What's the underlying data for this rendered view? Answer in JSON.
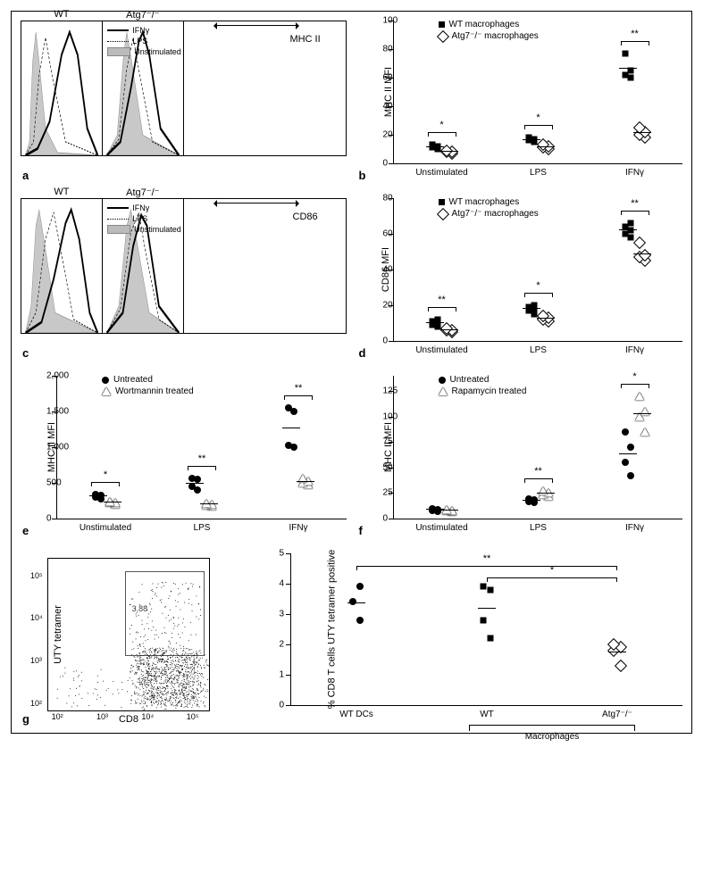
{
  "panel_a": {
    "left_title": "WT",
    "right_title": "Atg7⁻/⁻",
    "xaxis": "MHC II",
    "legend": [
      "IFNγ",
      "LPS",
      "Unstimulated"
    ],
    "curves": {
      "left": {
        "unstim": {
          "peak_x": 18,
          "fill": "#c8c8c8"
        },
        "lps": {
          "peak_x": 30,
          "dash": true
        },
        "ifn": {
          "peak_x": 60
        }
      },
      "right": {
        "unstim": {
          "peak_x": 30,
          "fill": "#c8c8c8"
        },
        "lps": {
          "peak_x": 38,
          "dash": true
        },
        "ifn": {
          "peak_x": 50
        }
      }
    }
  },
  "panel_b": {
    "ylabel": "MHC II MFI",
    "ylim": [
      0,
      100
    ],
    "ytick_step": 20,
    "legend": [
      "WT macrophages",
      "Atg7⁻/⁻ macrophages"
    ],
    "groups": [
      "Unstimulated",
      "LPS",
      "IFNγ"
    ],
    "data": {
      "WT": {
        "Unstimulated": [
          10,
          11,
          12,
          13
        ],
        "LPS": [
          15,
          16,
          17,
          18
        ],
        "IFNγ": [
          60,
          62,
          65,
          77
        ]
      },
      "Atg7": {
        "Unstimulated": [
          7,
          8,
          8,
          9
        ],
        "LPS": [
          10,
          11,
          12,
          13
        ],
        "IFNγ": [
          18,
          20,
          22,
          25
        ]
      }
    },
    "sig": {
      "Unstimulated": "*",
      "LPS": "*",
      "IFNγ": "**"
    }
  },
  "panel_c": {
    "left_title": "WT",
    "right_title": "Atg7⁻/⁻",
    "xaxis": "CD86",
    "legend": [
      "IFNγ",
      "LPS",
      "Unstimulated"
    ],
    "curves": {
      "left": {
        "unstim": {
          "peak_x": 20,
          "fill": "#c8c8c8"
        },
        "lps": {
          "peak_x": 40,
          "dash": true
        },
        "ifn": {
          "peak_x": 62
        }
      },
      "right": {
        "unstim": {
          "peak_x": 35,
          "fill": "#c8c8c8"
        },
        "lps": {
          "peak_x": 45,
          "dash": true
        },
        "ifn": {
          "peak_x": 50
        }
      }
    }
  },
  "panel_d": {
    "ylabel": "CD86 MFI",
    "ylim": [
      0,
      80
    ],
    "ytick_step": 20,
    "legend": [
      "WT macrophages",
      "Atg7⁻/⁻ macrophages"
    ],
    "groups": [
      "Unstimulated",
      "LPS",
      "IFNγ"
    ],
    "data": {
      "WT": {
        "Unstimulated": [
          8,
          9,
          10,
          11,
          12
        ],
        "LPS": [
          15,
          17,
          18,
          19,
          20
        ],
        "IFNγ": [
          58,
          60,
          62,
          64,
          66
        ]
      },
      "Atg7": {
        "Unstimulated": [
          5,
          6,
          6,
          7
        ],
        "LPS": [
          11,
          12,
          13,
          14
        ],
        "IFNγ": [
          45,
          47,
          48,
          55
        ]
      }
    },
    "sig": {
      "Unstimulated": "**",
      "LPS": "*",
      "IFNγ": "**"
    }
  },
  "panel_e": {
    "ylabel": "MHC II MFI",
    "ylim": [
      0,
      2000
    ],
    "ytick_step": 500,
    "legend": [
      "Untreated",
      "Wortmannin treated"
    ],
    "groups": [
      "Unstimulated",
      "LPS",
      "IFNγ"
    ],
    "data": {
      "Untreated": {
        "Unstimulated": [
          280,
          300,
          320,
          340
        ],
        "LPS": [
          400,
          450,
          550,
          560
        ],
        "IFNγ": [
          1000,
          1020,
          1500,
          1550
        ]
      },
      "Wortmannin": {
        "Unstimulated": [
          200,
          220,
          230,
          240
        ],
        "LPS": [
          180,
          190,
          200,
          210
        ],
        "IFNγ": [
          480,
          500,
          520,
          560
        ]
      }
    },
    "sig": {
      "Unstimulated": "*",
      "LPS": "**",
      "IFNγ": "**"
    }
  },
  "panel_f": {
    "ylabel": "MHC II MFI",
    "ylim": [
      0,
      140
    ],
    "ytick_step": 25,
    "yticks": [
      0,
      25,
      50,
      75,
      100,
      125
    ],
    "legend": [
      "Untreated",
      "Rapamycin treated"
    ],
    "groups": [
      "Unstimulated",
      "LPS",
      "IFNγ"
    ],
    "data": {
      "Untreated": {
        "Unstimulated": [
          7,
          8,
          9,
          10
        ],
        "LPS": [
          16,
          17,
          18,
          19
        ],
        "IFNγ": [
          42,
          55,
          70,
          85
        ]
      },
      "Rapamycin": {
        "Unstimulated": [
          7,
          8,
          8,
          9
        ],
        "LPS": [
          22,
          24,
          25,
          27
        ],
        "IFNγ": [
          85,
          100,
          105,
          120
        ]
      }
    },
    "sig": {
      "LPS": "**",
      "IFNγ": "*"
    }
  },
  "panel_g": {
    "facs": {
      "ylabel": "UTY tetramer",
      "xlabel": "CD8",
      "ticks": [
        "10²",
        "10³",
        "10⁴",
        "10⁵"
      ],
      "gate_label": "3.88"
    },
    "strip": {
      "ylabel": "% CD8 T cells UTY tetramer positive",
      "ylim": [
        0,
        5
      ],
      "ytick_step": 1,
      "groups": [
        "WT DCs",
        "WT",
        "Atg7⁻/⁻"
      ],
      "bracket_label": "Macrophages",
      "data": {
        "WT DCs": [
          2.8,
          3.4,
          3.9
        ],
        "WT": [
          2.2,
          2.8,
          3.8,
          3.9
        ],
        "Atg7": [
          1.3,
          1.8,
          1.9,
          2.0
        ]
      },
      "markers": {
        "WT DCs": "circ",
        "WT": "sq",
        "Atg7": "dia"
      },
      "sig": [
        {
          "from": "WT DCs",
          "to": "Atg7⁻/⁻",
          "label": "**",
          "y": 4.6
        },
        {
          "from": "WT",
          "to": "Atg7⁻/⁻",
          "label": "*",
          "y": 4.2
        }
      ]
    }
  },
  "colors": {
    "fill_grey": "#c8c8c8",
    "line_black": "#000000",
    "border": "#000000"
  },
  "font": {
    "family": "Arial",
    "label_size": 11,
    "tick_size": 10
  }
}
